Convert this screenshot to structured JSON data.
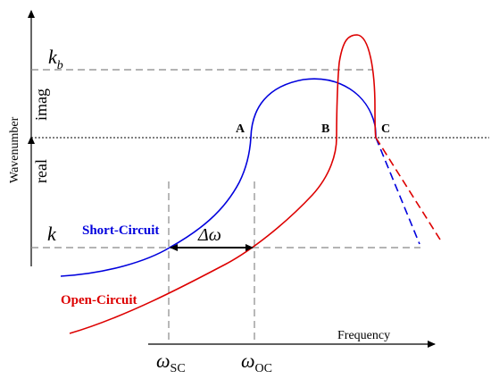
{
  "axes": {
    "vertical_label": "Wavenumber",
    "imag_label": "imag",
    "real_label": "real",
    "horizontal_label": "Frequency"
  },
  "levels": {
    "kb_main": "k",
    "kb_sub": "b",
    "k": "k"
  },
  "points": {
    "A": "A",
    "B": "B",
    "C": "C"
  },
  "curves": {
    "short_circuit": {
      "label": "Short-Circuit",
      "color": "#0000dd"
    },
    "open_circuit": {
      "label": "Open-Circuit",
      "color": "#dd0000"
    }
  },
  "delta_omega": {
    "symbol": "Δω"
  },
  "frequencies": {
    "omega": "ω",
    "sc_sub": "SC",
    "oc_sub": "OC"
  }
}
